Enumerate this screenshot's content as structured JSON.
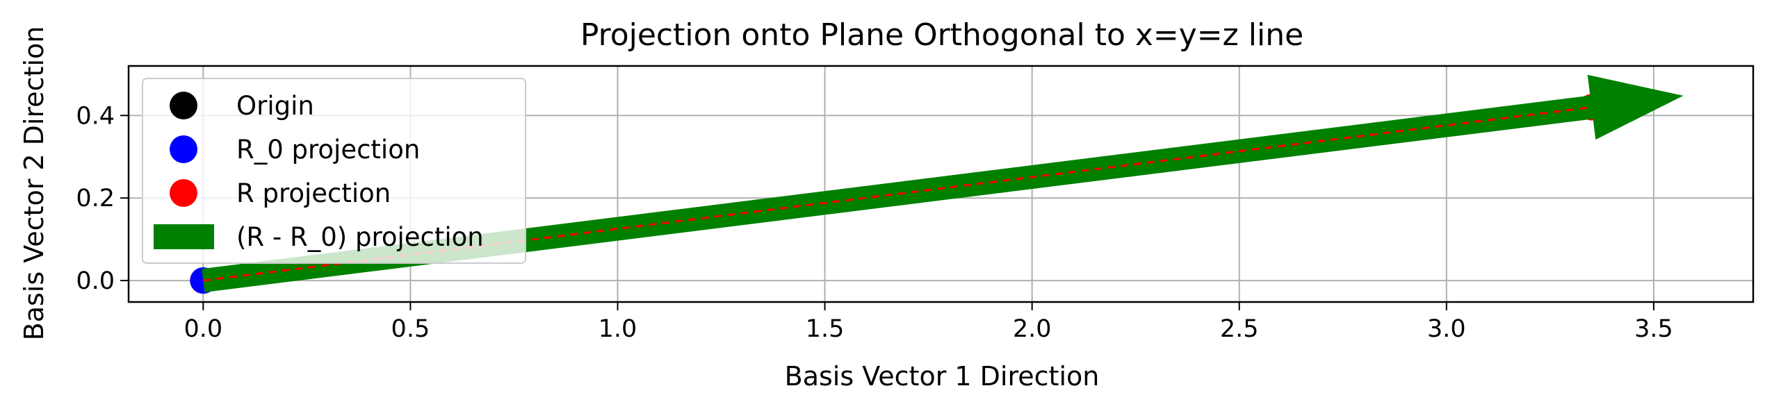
{
  "chart_data": {
    "type": "scatter",
    "title": "Projection onto Plane Orthogonal to x=y=z line",
    "xlabel": "Basis Vector 1 Direction",
    "ylabel": "Basis Vector 2 Direction",
    "xlim": [
      -0.18,
      3.74
    ],
    "ylim": [
      -0.052,
      0.52
    ],
    "xticks": [
      0.0,
      0.5,
      1.0,
      1.5,
      2.0,
      2.5,
      3.0,
      3.5
    ],
    "xtick_labels": [
      "0.0",
      "0.5",
      "1.0",
      "1.5",
      "2.0",
      "2.5",
      "3.0",
      "3.5"
    ],
    "yticks": [
      0.0,
      0.2,
      0.4
    ],
    "ytick_labels": [
      "0.0",
      "0.2",
      "0.4"
    ],
    "grid": true,
    "legend_position": "upper-left",
    "series": [
      {
        "name": "Origin",
        "kind": "point",
        "x": 0.0,
        "y": 0.0,
        "color": "#000000"
      },
      {
        "name": "R_0 projection",
        "kind": "point",
        "x": 0.0,
        "y": 0.0,
        "color": "#0000ff"
      },
      {
        "name": "R projection",
        "kind": "point",
        "x": 3.35,
        "y": 0.42,
        "color": "#ff0000"
      },
      {
        "name": "(R - R_0) projection",
        "kind": "arrow",
        "x_start": 0.0,
        "y_start": 0.0,
        "x_end": 3.35,
        "y_end": 0.42,
        "color": "#008000"
      }
    ],
    "annotations": [
      {
        "kind": "dashed-line",
        "x_start": 0.0,
        "y_start": 0.0,
        "x_end": 3.35,
        "y_end": 0.42,
        "color": "#ff0000"
      }
    ]
  }
}
